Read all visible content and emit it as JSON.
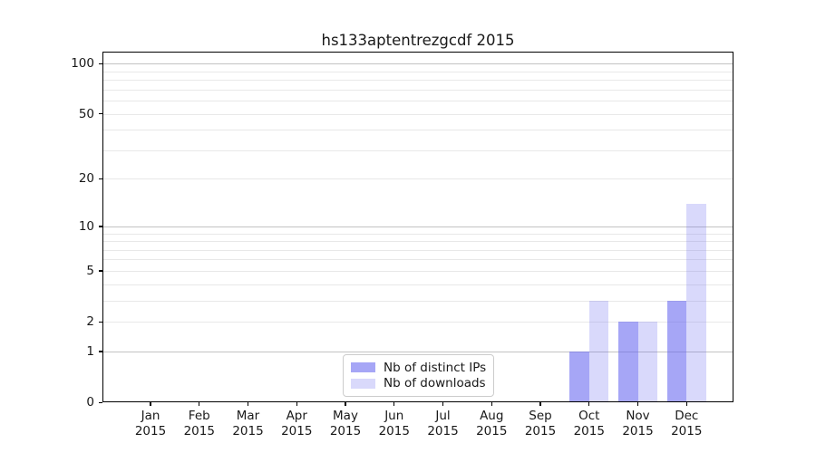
{
  "chart_data": {
    "type": "bar",
    "title": "hs133aptentrezgcdf 2015",
    "categories": [
      "Jan 2015",
      "Feb 2015",
      "Mar 2015",
      "Apr 2015",
      "May 2015",
      "Jun 2015",
      "Jul 2015",
      "Aug 2015",
      "Sep 2015",
      "Oct 2015",
      "Nov 2015",
      "Dec 2015"
    ],
    "x_tick_months": [
      "Jan",
      "Feb",
      "Mar",
      "Apr",
      "May",
      "Jun",
      "Jul",
      "Aug",
      "Sep",
      "Oct",
      "Nov",
      "Dec"
    ],
    "x_tick_year": "2015",
    "series": [
      {
        "name": "Nb of distinct IPs",
        "color": "rgba(102,102,240,0.58)",
        "solid_hex": "#a9a9f6",
        "values": [
          0,
          0,
          0,
          0,
          0,
          0,
          0,
          0,
          0,
          1,
          2,
          3
        ]
      },
      {
        "name": "Nb of downloads",
        "color": "rgba(102,102,240,0.25)",
        "solid_hex": "#dcdcf9",
        "values": [
          0,
          0,
          0,
          0,
          0,
          0,
          0,
          0,
          0,
          3,
          2,
          14
        ]
      }
    ],
    "y_scale": "log10(1+y)",
    "ylim": [
      0,
      118
    ],
    "y_ticks": [
      0,
      1,
      2,
      5,
      10,
      20,
      50,
      100
    ],
    "y_major_gridlines": [
      1,
      10,
      100
    ],
    "y_minor_gridlines": [
      2,
      3,
      4,
      5,
      6,
      7,
      8,
      9,
      20,
      30,
      40,
      50,
      60,
      70,
      80,
      90
    ],
    "grid": true,
    "legend_position": "lower center"
  },
  "style": {
    "grid_minor_color": "#e8e8e8",
    "grid_major_color": "#c3c3c3",
    "axis_color": "#000000",
    "text_color": "#191919",
    "background": "#ffffff"
  }
}
